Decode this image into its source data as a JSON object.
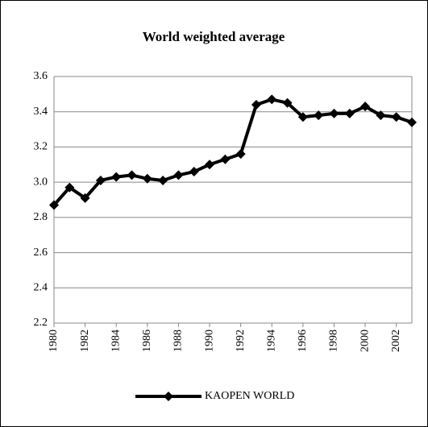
{
  "chart_data": {
    "type": "line",
    "title": "World weighted average",
    "x": [
      1980,
      1981,
      1982,
      1983,
      1984,
      1985,
      1986,
      1987,
      1988,
      1989,
      1990,
      1991,
      1992,
      1993,
      1994,
      1995,
      1996,
      1997,
      1998,
      1999,
      2000,
      2001,
      2002,
      2003
    ],
    "series": [
      {
        "name": "KAOPEN WORLD",
        "color": "#000000",
        "values": [
          2.87,
          2.97,
          2.91,
          3.01,
          3.03,
          3.04,
          3.02,
          3.01,
          3.04,
          3.06,
          3.1,
          3.13,
          3.16,
          3.44,
          3.47,
          3.45,
          3.37,
          3.38,
          3.39,
          3.39,
          3.43,
          3.38,
          3.37,
          3.34
        ]
      }
    ],
    "xlim": [
      1980,
      2003
    ],
    "xticks": [
      1980,
      1982,
      1984,
      1986,
      1988,
      1990,
      1992,
      1994,
      1996,
      1998,
      2000,
      2002
    ],
    "ylim": [
      2.2,
      3.6
    ],
    "yticks": [
      2.2,
      2.4,
      2.6,
      2.8,
      {
        "value": 3,
        "label": "3.0"
      },
      3.2,
      3.4,
      3.6
    ],
    "grid": true,
    "legend": "bottom"
  }
}
